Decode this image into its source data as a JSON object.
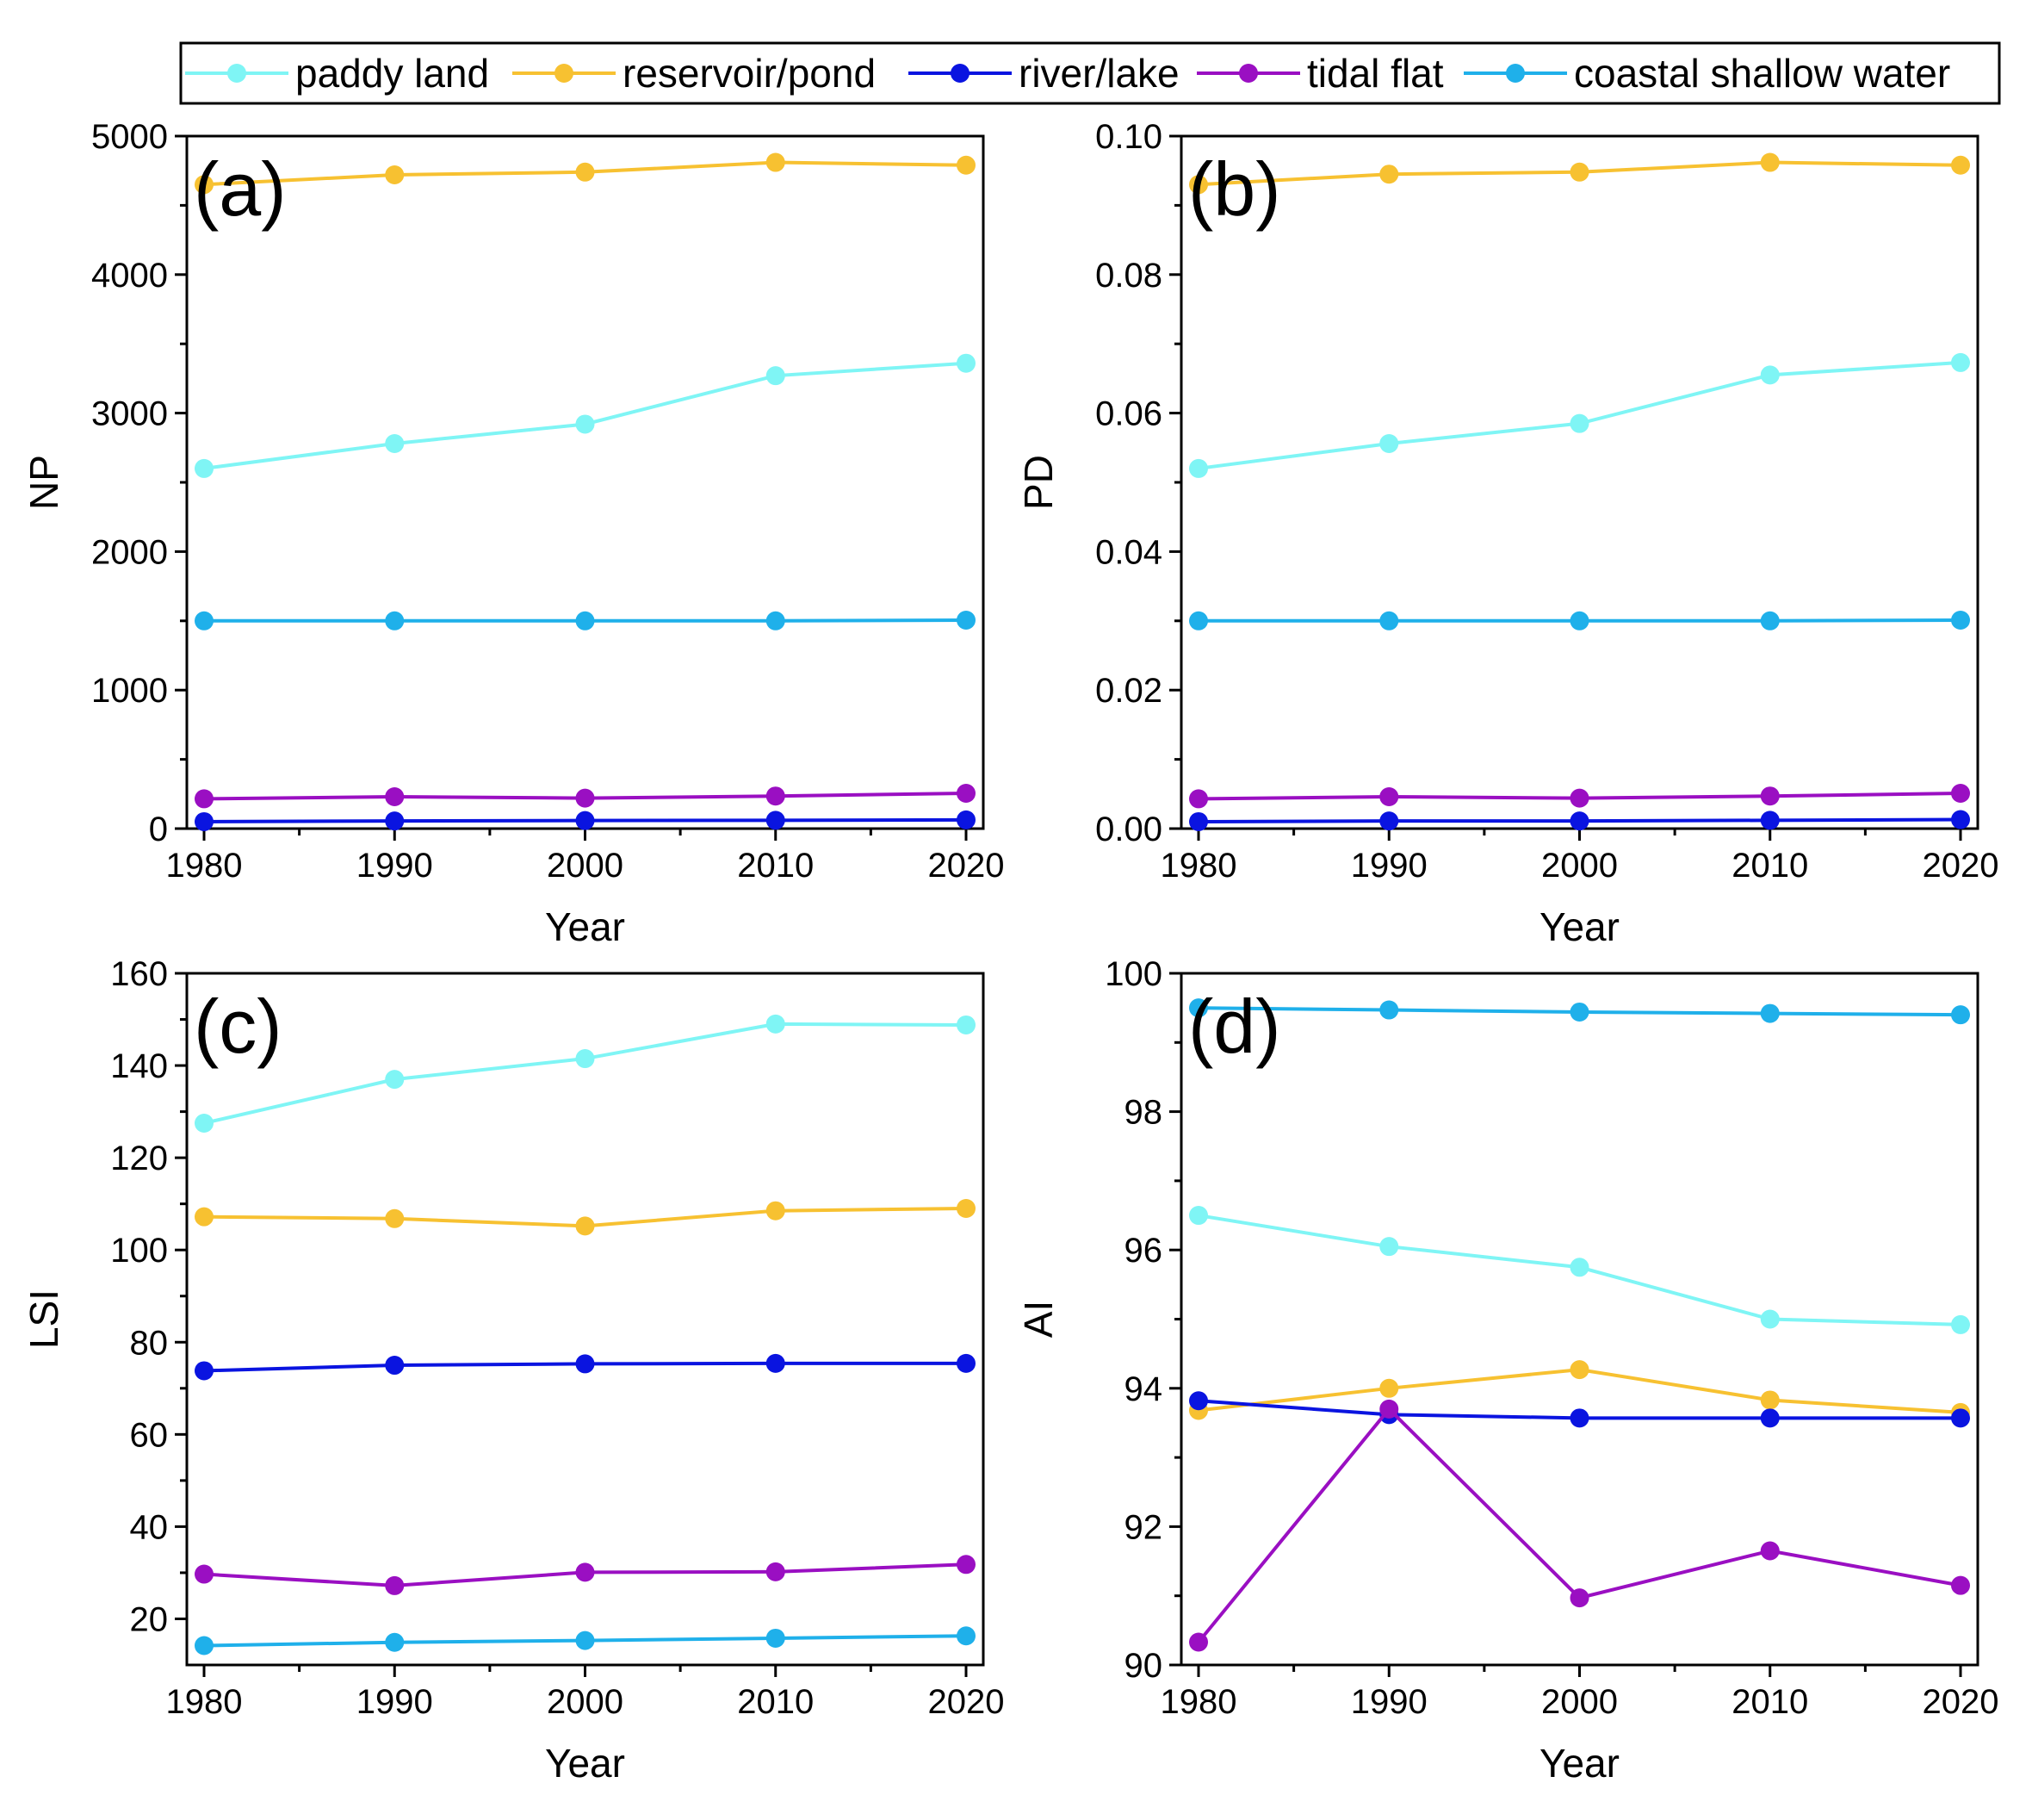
{
  "legend": [
    {
      "name": "paddy land",
      "color": "#7ff5f5"
    },
    {
      "name": "reservoir/pond",
      "color": "#f7c131"
    },
    {
      "name": "river/lake",
      "color": "#0a14e0"
    },
    {
      "name": "tidal flat",
      "color": "#9a0fc2"
    },
    {
      "name": "coastal shallow water",
      "color": "#1fb0ea"
    }
  ],
  "chart_data": [
    {
      "type": "line",
      "panel": "(a)",
      "xlabel": "Year",
      "ylabel": "NP",
      "x": [
        1980,
        1990,
        2000,
        2010,
        2020
      ],
      "xticks": [
        "1980",
        "1990",
        "2000",
        "2010",
        "2020"
      ],
      "ylim": [
        0,
        5000
      ],
      "yticks": [
        0,
        1000,
        2000,
        3000,
        4000,
        5000
      ],
      "ytick_labels": [
        "0",
        "1000",
        "2000",
        "3000",
        "4000",
        "5000"
      ],
      "series": [
        {
          "name": "paddy land",
          "values": [
            2600,
            2780,
            2920,
            3270,
            3360
          ]
        },
        {
          "name": "reservoir/pond",
          "values": [
            4650,
            4720,
            4740,
            4810,
            4790
          ]
        },
        {
          "name": "river/lake",
          "values": [
            50,
            55,
            58,
            60,
            63
          ]
        },
        {
          "name": "tidal flat",
          "values": [
            215,
            230,
            220,
            235,
            255
          ]
        },
        {
          "name": "coastal shallow water",
          "values": [
            1500,
            1500,
            1500,
            1500,
            1505
          ]
        }
      ]
    },
    {
      "type": "line",
      "panel": "(b)",
      "xlabel": "Year",
      "ylabel": "PD",
      "x": [
        1980,
        1990,
        2000,
        2010,
        2020
      ],
      "xticks": [
        "1980",
        "1990",
        "2000",
        "2010",
        "2020"
      ],
      "ylim": [
        0,
        0.1
      ],
      "yticks": [
        0,
        0.02,
        0.04,
        0.06,
        0.08,
        0.1
      ],
      "ytick_labels": [
        "0.00",
        "0.02",
        "0.04",
        "0.06",
        "0.08",
        "0.10"
      ],
      "series": [
        {
          "name": "paddy land",
          "values": [
            0.052,
            0.0556,
            0.0585,
            0.0655,
            0.0673
          ]
        },
        {
          "name": "reservoir/pond",
          "values": [
            0.093,
            0.0945,
            0.0948,
            0.0962,
            0.0958
          ]
        },
        {
          "name": "river/lake",
          "values": [
            0.001,
            0.0011,
            0.0011,
            0.0012,
            0.0013
          ]
        },
        {
          "name": "tidal flat",
          "values": [
            0.0043,
            0.0046,
            0.0044,
            0.0047,
            0.0051
          ]
        },
        {
          "name": "coastal shallow water",
          "values": [
            0.03,
            0.03,
            0.03,
            0.03,
            0.0301
          ]
        }
      ]
    },
    {
      "type": "line",
      "panel": "(c)",
      "xlabel": "Year",
      "ylabel": "LSI",
      "x": [
        1980,
        1990,
        2000,
        2010,
        2020
      ],
      "xticks": [
        "1980",
        "1990",
        "2000",
        "2010",
        "2020"
      ],
      "ylim": [
        10,
        160
      ],
      "yticks": [
        20,
        40,
        60,
        80,
        100,
        120,
        140,
        160
      ],
      "ytick_labels": [
        "20",
        "40",
        "60",
        "80",
        "100",
        "120",
        "140",
        "160"
      ],
      "series": [
        {
          "name": "paddy land",
          "values": [
            127.5,
            137,
            141.5,
            149,
            148.8
          ]
        },
        {
          "name": "reservoir/pond",
          "values": [
            107.2,
            106.8,
            105.2,
            108.5,
            109
          ]
        },
        {
          "name": "river/lake",
          "values": [
            73.8,
            75,
            75.3,
            75.4,
            75.4
          ]
        },
        {
          "name": "tidal flat",
          "values": [
            29.7,
            27.2,
            30.1,
            30.2,
            31.8
          ]
        },
        {
          "name": "coastal shallow water",
          "values": [
            14.2,
            14.9,
            15.3,
            15.8,
            16.3
          ]
        }
      ]
    },
    {
      "type": "line",
      "panel": "(d)",
      "xlabel": "Year",
      "ylabel": "AI",
      "x": [
        1980,
        1990,
        2000,
        2010,
        2020
      ],
      "xticks": [
        "1980",
        "1990",
        "2000",
        "2010",
        "2020"
      ],
      "ylim": [
        90,
        100
      ],
      "yticks": [
        90,
        92,
        94,
        96,
        98,
        100
      ],
      "ytick_labels": [
        "90",
        "92",
        "94",
        "96",
        "98",
        "100"
      ],
      "series": [
        {
          "name": "paddy land",
          "values": [
            96.5,
            96.05,
            95.75,
            95,
            94.92
          ]
        },
        {
          "name": "reservoir/pond",
          "values": [
            93.68,
            94,
            94.27,
            93.83,
            93.65
          ]
        },
        {
          "name": "river/lake",
          "values": [
            93.82,
            93.62,
            93.57,
            93.57,
            93.57
          ]
        },
        {
          "name": "tidal flat",
          "values": [
            90.33,
            93.7,
            90.97,
            91.65,
            91.15
          ]
        },
        {
          "name": "coastal shallow water",
          "values": [
            99.5,
            99.47,
            99.44,
            99.42,
            99.4
          ]
        }
      ]
    }
  ]
}
